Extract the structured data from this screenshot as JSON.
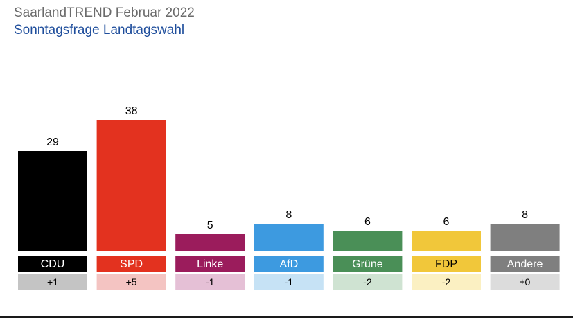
{
  "header": {
    "title": "SaarlandTREND Februar 2022",
    "subtitle": "Sonntagsfrage Landtagswahl"
  },
  "chart_data": {
    "type": "bar",
    "title": "SaarlandTREND Februar 2022",
    "subtitle": "Sonntagsfrage Landtagswahl",
    "categories": [
      "CDU",
      "SPD",
      "Linke",
      "AfD",
      "Grüne",
      "FDP",
      "Andere"
    ],
    "values": [
      29,
      38,
      5,
      8,
      6,
      6,
      8
    ],
    "changes": [
      "+1",
      "+5",
      "-1",
      "-1",
      "-2",
      "-2",
      "±0"
    ],
    "colors": [
      "#000000",
      "#e3321f",
      "#9b1c5c",
      "#3d9ae0",
      "#4a8f57",
      "#f1c73a",
      "#7f7f7f"
    ],
    "change_colors": [
      "#c4c4c4",
      "#f4c4c2",
      "#e5c0d6",
      "#c6e2f5",
      "#cfe3d2",
      "#fbf0c2",
      "#dcdcdc"
    ],
    "label_text_colors": [
      "#ffffff",
      "#ffffff",
      "#ffffff",
      "#ffffff",
      "#ffffff",
      "#000000",
      "#ffffff"
    ],
    "xlabel": "",
    "ylabel": "",
    "ylim": [
      0,
      40
    ],
    "grid": false,
    "legend": "none"
  }
}
